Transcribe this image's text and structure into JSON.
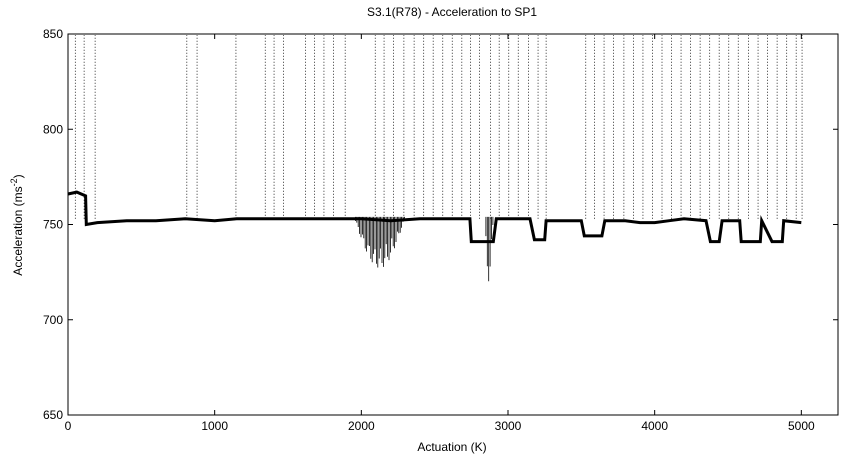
{
  "chart_data": {
    "type": "scatter",
    "title": "S3.1(R78) - Acceleration to SP1",
    "xlabel": "Actuation (K)",
    "ylabel": "Acceleration (ms",
    "ylabel_superscript": "-2",
    "ylabel_suffix": ")",
    "xlim": [
      0,
      5250
    ],
    "ylim": [
      650,
      850
    ],
    "xticks": [
      0,
      1000,
      2000,
      3000,
      4000,
      5000
    ],
    "yticks": [
      650,
      700,
      750,
      800,
      850
    ],
    "grid": false,
    "series_color": "#000000",
    "baseline": [
      [
        0,
        766
      ],
      [
        60,
        767
      ],
      [
        120,
        765
      ],
      [
        125,
        750
      ],
      [
        200,
        751
      ],
      [
        400,
        752
      ],
      [
        600,
        752
      ],
      [
        800,
        753
      ],
      [
        1000,
        752
      ],
      [
        1150,
        753
      ],
      [
        1200,
        753
      ],
      [
        1400,
        753
      ],
      [
        1600,
        753
      ],
      [
        1800,
        753
      ],
      [
        1950,
        753
      ],
      [
        2000,
        753
      ],
      [
        2200,
        752
      ],
      [
        2400,
        753
      ],
      [
        2600,
        753
      ],
      [
        2740,
        753
      ],
      [
        2750,
        741
      ],
      [
        2900,
        741
      ],
      [
        2920,
        753
      ],
      [
        3000,
        753
      ],
      [
        3150,
        753
      ],
      [
        3180,
        742
      ],
      [
        3250,
        742
      ],
      [
        3260,
        752
      ],
      [
        3400,
        752
      ],
      [
        3500,
        752
      ],
      [
        3520,
        744
      ],
      [
        3640,
        744
      ],
      [
        3660,
        752
      ],
      [
        3800,
        752
      ],
      [
        3900,
        751
      ],
      [
        4000,
        751
      ],
      [
        4100,
        752
      ],
      [
        4200,
        753
      ],
      [
        4350,
        752
      ],
      [
        4380,
        741
      ],
      [
        4440,
        741
      ],
      [
        4460,
        752
      ],
      [
        4580,
        752
      ],
      [
        4590,
        741
      ],
      [
        4720,
        741
      ],
      [
        4730,
        752
      ],
      [
        4800,
        741
      ],
      [
        4870,
        741
      ],
      [
        4880,
        752
      ],
      [
        5000,
        751
      ]
    ],
    "spikes": [
      50,
      110,
      185,
      810,
      880,
      1145,
      1345,
      1405,
      1470,
      1620,
      1680,
      1745,
      1810,
      1890,
      2095,
      2155,
      2220,
      2290,
      2360,
      2425,
      2490,
      2555,
      2620,
      2685,
      2745,
      2805,
      2880,
      2940,
      3005,
      3070,
      3140,
      3205,
      3260,
      3530,
      3590,
      3655,
      3720,
      3790,
      3855,
      3920,
      3985,
      4050,
      4115,
      4180,
      4245,
      4310,
      4375,
      4440,
      4505,
      4570,
      4640,
      4705,
      4770,
      4835,
      4900,
      4965,
      5005
    ],
    "dips": [
      {
        "x_range": [
          1950,
          2300
        ],
        "low": 727
      },
      {
        "x_range": [
          2840,
          2900
        ],
        "low": 720
      }
    ]
  }
}
